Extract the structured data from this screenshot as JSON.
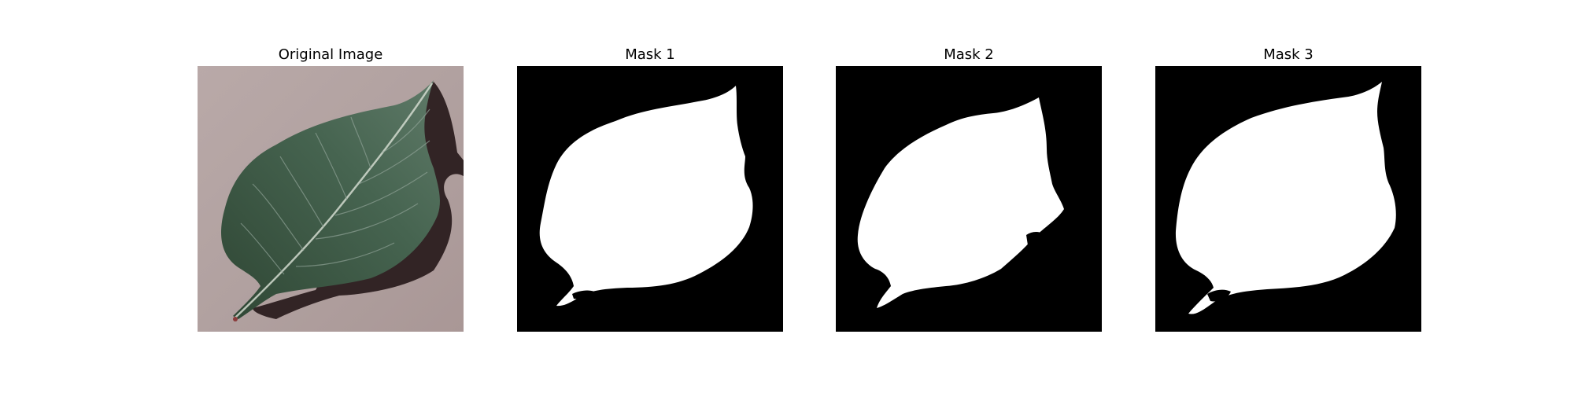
{
  "figure": {
    "panels": [
      {
        "title": "Original Image",
        "kind": "photo",
        "subject": "green leaf on grey-mauve background"
      },
      {
        "title": "Mask 1",
        "kind": "binary-mask"
      },
      {
        "title": "Mask 2",
        "kind": "binary-mask"
      },
      {
        "title": "Mask 3",
        "kind": "binary-mask"
      }
    ]
  },
  "colors": {
    "background": "#ffffff",
    "mask_foreground": "#ffffff",
    "mask_background": "#000000",
    "photo_background": "#b3a3a3",
    "leaf": "#3e5c45",
    "leaf_vein": "#cfd8cc",
    "shadow": "#2a1f20"
  }
}
